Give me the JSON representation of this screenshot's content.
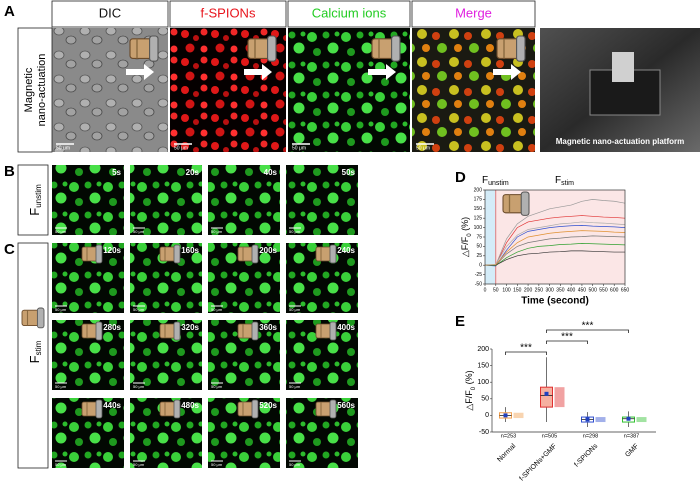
{
  "panel_labels": [
    "A",
    "B",
    "C",
    "D",
    "E"
  ],
  "panel_a": {
    "columns": [
      "DIC",
      "f-SPIONs",
      "Calcium ions",
      "Merge"
    ],
    "column_colors": [
      "#111111",
      "#e8141c",
      "#22cc22",
      "#e020e0"
    ],
    "row_label": [
      "Magnetic",
      "nano-actuation"
    ],
    "scale_bar": "50 μm",
    "platform_caption": "Magnetic nano-actuation platform"
  },
  "panel_b": {
    "row_label": {
      "main": "F",
      "sub": "unstim"
    },
    "times": [
      "5s",
      "20s",
      "40s",
      "50s"
    ],
    "scale_bar": "50 μm"
  },
  "panel_c": {
    "row_label": {
      "main": "F",
      "sub": "stim"
    },
    "times": [
      "120s",
      "160s",
      "200s",
      "240s",
      "280s",
      "320s",
      "360s",
      "400s",
      "440s",
      "480s",
      "520s",
      "560s"
    ],
    "scale_bar": "50 μm"
  },
  "chart_data": [
    {
      "type": "line",
      "x_label": "Time (second)",
      "y_label": {
        "text": "△F/F",
        "sub": "0",
        "suffix": " (%)"
      },
      "annotations": [
        {
          "main": "F",
          "sub": "unstim"
        },
        {
          "main": "F",
          "sub": "stim"
        }
      ],
      "shaded": [
        {
          "range": [
            0,
            50
          ],
          "color": "#d4ecf8"
        },
        {
          "range": [
            50,
            650
          ],
          "color": "#fbe6e6"
        }
      ],
      "x": [
        0,
        50,
        100,
        150,
        200,
        250,
        300,
        350,
        400,
        450,
        500,
        550,
        600,
        650
      ],
      "series": [
        {
          "color": "#e03030",
          "values": [
            0,
            0,
            60,
            100,
            115,
            120,
            125,
            128,
            130,
            132,
            130,
            128,
            127,
            125
          ]
        },
        {
          "color": "#3050d0",
          "values": [
            0,
            -2,
            40,
            75,
            90,
            95,
            100,
            103,
            105,
            106,
            104,
            103,
            102,
            100
          ]
        },
        {
          "color": "#999999",
          "values": [
            0,
            1,
            70,
            110,
            130,
            140,
            150,
            155,
            160,
            170,
            175,
            172,
            170,
            165
          ]
        },
        {
          "color": "#777777",
          "values": [
            0,
            0,
            30,
            50,
            60,
            65,
            70,
            72,
            75,
            76,
            78,
            77,
            76,
            75
          ]
        },
        {
          "color": "#30a030",
          "values": [
            0,
            -1,
            20,
            35,
            45,
            50,
            52,
            55,
            56,
            58,
            57,
            56,
            55,
            54
          ]
        },
        {
          "color": "#aaaaaa",
          "values": [
            0,
            2,
            50,
            80,
            95,
            100,
            105,
            110,
            112,
            115,
            113,
            112,
            110,
            108
          ]
        },
        {
          "color": "#333333",
          "values": [
            0,
            0,
            15,
            25,
            30,
            32,
            35,
            36,
            38,
            38,
            37,
            36,
            35,
            35
          ]
        },
        {
          "color": "#e09030",
          "values": [
            0,
            1,
            35,
            60,
            75,
            80,
            85,
            88,
            90,
            92,
            91,
            90,
            88,
            87
          ]
        }
      ],
      "xlim": [
        0,
        650
      ],
      "ylim": [
        -50,
        200
      ],
      "xticks": [
        0,
        50,
        100,
        150,
        200,
        250,
        300,
        350,
        400,
        450,
        500,
        550,
        600,
        650
      ],
      "yticks": [
        -50,
        -25,
        0,
        25,
        50,
        75,
        100,
        125,
        150,
        175,
        200
      ]
    },
    {
      "type": "box",
      "y_label": {
        "text": "△F/F",
        "sub": "0",
        "suffix": " (%)"
      },
      "categories": [
        "Normal",
        "f-SPIONs+GMF",
        "f-SPIONs",
        "GMF"
      ],
      "n_labels": [
        "n=253",
        "n=505",
        "n=298",
        "n=387"
      ],
      "colors": [
        "#f0a050",
        "#e03030",
        "#3050d0",
        "#30c030"
      ],
      "boxes": [
        {
          "whislo": -20,
          "q1": -8,
          "med": 0,
          "q3": 8,
          "whishi": 25,
          "mean": 0
        },
        {
          "whislo": -20,
          "q1": 25,
          "med": 60,
          "q3": 85,
          "whishi": 175,
          "mean": 65
        },
        {
          "whislo": -35,
          "q1": -20,
          "med": -12,
          "q3": -5,
          "whishi": 10,
          "mean": -12
        },
        {
          "whislo": -35,
          "q1": -20,
          "med": -10,
          "q3": -5,
          "whishi": 12,
          "mean": -10
        }
      ],
      "significance": [
        {
          "pair": [
            0,
            1
          ],
          "label": "***"
        },
        {
          "pair": [
            1,
            2
          ],
          "label": "***"
        },
        {
          "pair": [
            1,
            3
          ],
          "label": "***"
        }
      ],
      "ylim": [
        -50,
        200
      ],
      "yticks": [
        -50,
        0,
        50,
        100,
        150,
        200
      ]
    }
  ]
}
